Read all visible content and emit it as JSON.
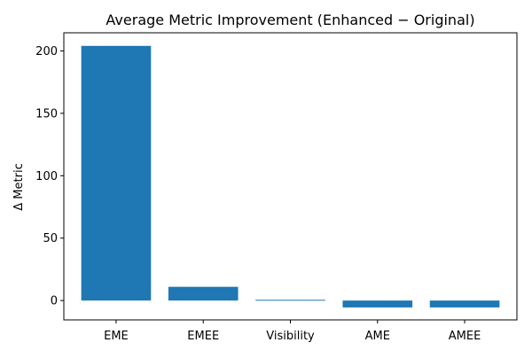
{
  "chart_data": {
    "type": "bar",
    "title": "Average Metric Improvement (Enhanced − Original)",
    "xlabel": "",
    "ylabel": "Δ Metric",
    "categories": [
      "EME",
      "EMEE",
      "Visibility",
      "AME",
      "AMEE"
    ],
    "values": [
      204,
      11,
      0.6,
      -5.5,
      -5.5
    ],
    "ylim": [
      -15.5,
      214.5
    ],
    "yticks": [
      0,
      50,
      100,
      150,
      200
    ],
    "grid": false,
    "legend": "none",
    "bar_color": "#1f77b4"
  }
}
